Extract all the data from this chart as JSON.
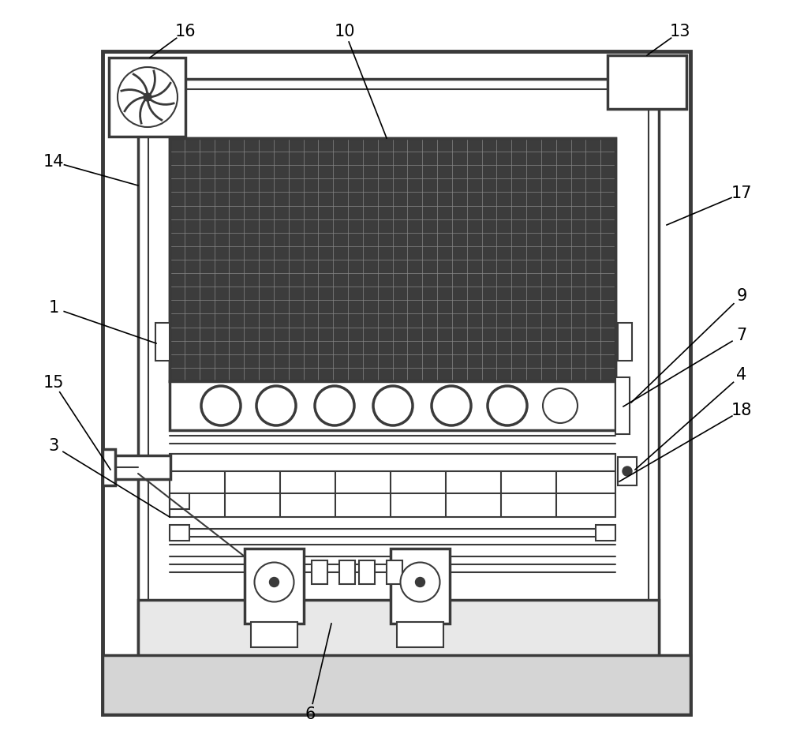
{
  "bg_color": "#ffffff",
  "line_color": "#3a3a3a",
  "label_fontsize": 15,
  "figsize": [
    10.0,
    9.35
  ],
  "dpi": 100
}
